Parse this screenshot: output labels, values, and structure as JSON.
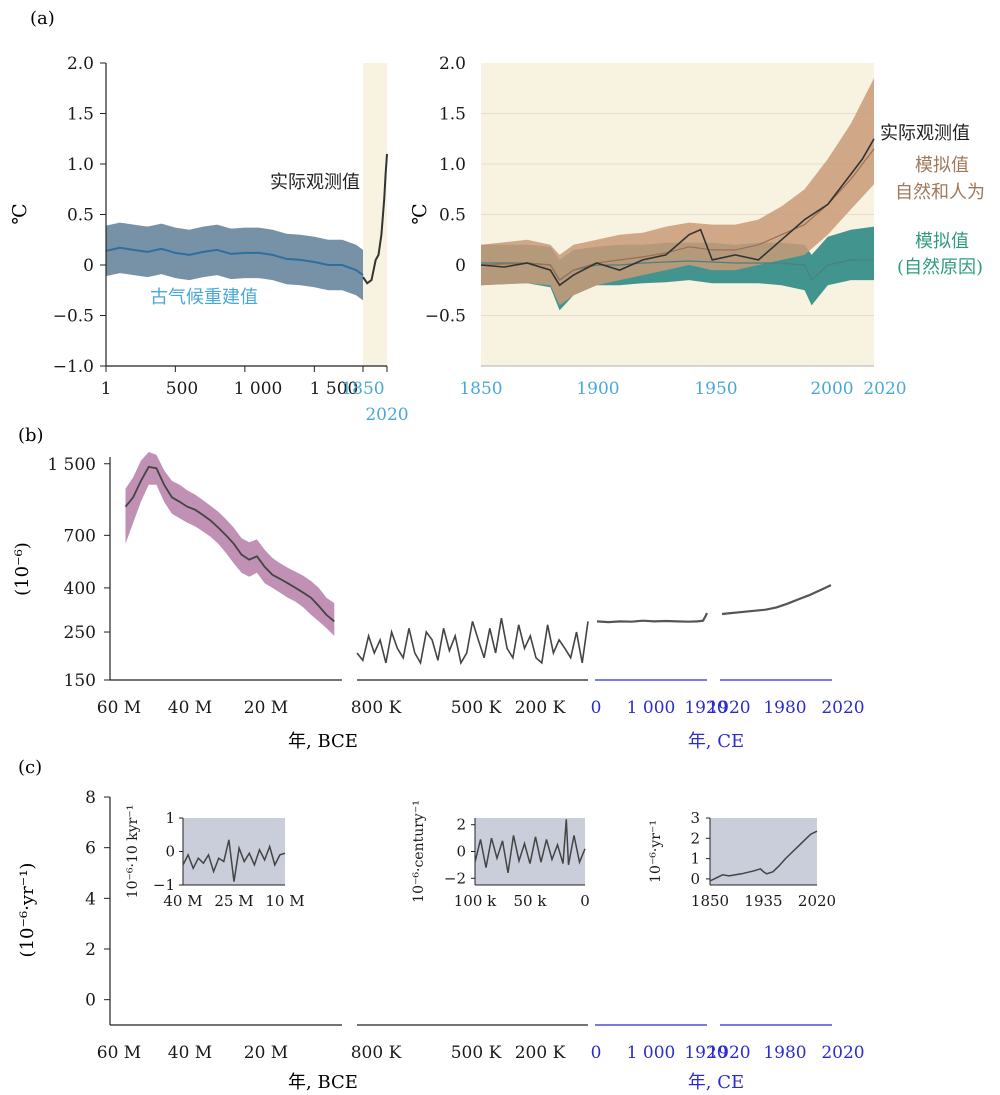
{
  "colors": {
    "observed": "#333333",
    "paleo": "#2f6fa0",
    "paleo_band": "#5f7f98",
    "paleo_label": "#4aa8d8",
    "sim_human": "#c99a78",
    "sim_human_label": "#a0785a",
    "sim_natural": "#2e8b86",
    "sim_natural_label": "#2e9b7e",
    "recent_bg": "#f8f3e0",
    "co2_band": "#b57ca8",
    "ce_axis": "#2b2bd0",
    "ce_tick": "#4aa8d8",
    "inset_bg": "#c9ceda"
  },
  "panel_labels": {
    "a": "(a)",
    "b": "(b)",
    "c": "(c)"
  },
  "chart_data": [
    {
      "id": "a-left",
      "type": "line",
      "ylabel": "℃",
      "ylim": [
        -1.0,
        2.0
      ],
      "yticks": [
        "2.0",
        "1.5",
        "1.0",
        "0.5",
        "0",
        "−0.5",
        "−1.0"
      ],
      "xticks": [
        "1",
        "500",
        "1 000",
        "1 500",
        "1850",
        "2020"
      ],
      "xlim": [
        1,
        2020
      ],
      "highlight_x": [
        1850,
        2020
      ],
      "series": [
        {
          "name": "古气候重建值",
          "x": [
            1,
            100,
            200,
            300,
            400,
            500,
            600,
            700,
            800,
            900,
            1000,
            1100,
            1200,
            1300,
            1400,
            1500,
            1600,
            1700,
            1800,
            1850
          ],
          "y": [
            0.14,
            0.17,
            0.15,
            0.13,
            0.16,
            0.12,
            0.1,
            0.13,
            0.15,
            0.11,
            0.12,
            0.12,
            0.1,
            0.06,
            0.05,
            0.03,
            0.0,
            0.0,
            -0.05,
            -0.1
          ],
          "band": 0.25
        },
        {
          "name": "实际观测值",
          "x": [
            1850,
            1880,
            1910,
            1940,
            1960,
            1980,
            2000,
            2010,
            2020
          ],
          "y": [
            -0.12,
            -0.18,
            -0.15,
            0.05,
            0.1,
            0.3,
            0.65,
            0.9,
            1.1
          ]
        }
      ]
    },
    {
      "id": "a-right",
      "type": "line",
      "ylabel": "℃",
      "ylim": [
        -1.0,
        2.0
      ],
      "yticks": [
        "2.0",
        "1.5",
        "1.0",
        "0.5",
        "0",
        "−0.5"
      ],
      "xticks": [
        "1850",
        "1900",
        "1950",
        "2000",
        "2020"
      ],
      "xlim": [
        1850,
        2020
      ],
      "series": [
        {
          "name": "实际观测值",
          "x": [
            1850,
            1860,
            1870,
            1880,
            1884,
            1890,
            1900,
            1910,
            1920,
            1930,
            1940,
            1945,
            1950,
            1960,
            1970,
            1980,
            1990,
            2000,
            2010,
            2015,
            2020
          ],
          "y": [
            0.0,
            -0.02,
            0.02,
            -0.05,
            -0.2,
            -0.1,
            0.02,
            -0.05,
            0.05,
            0.1,
            0.3,
            0.35,
            0.05,
            0.1,
            0.05,
            0.25,
            0.45,
            0.6,
            0.9,
            1.05,
            1.25
          ]
        },
        {
          "name": "模拟值 自然和人为",
          "x": [
            1850,
            1870,
            1880,
            1884,
            1890,
            1900,
            1910,
            1920,
            1930,
            1940,
            1950,
            1960,
            1970,
            1980,
            1990,
            2000,
            2010,
            2020
          ],
          "y": [
            0.0,
            0.02,
            0.0,
            -0.15,
            -0.05,
            0.02,
            0.05,
            0.08,
            0.12,
            0.18,
            0.15,
            0.15,
            0.2,
            0.3,
            0.4,
            0.6,
            0.85,
            1.15
          ],
          "band_lo": [
            -0.2,
            -0.18,
            -0.2,
            -0.4,
            -0.3,
            -0.2,
            -0.15,
            -0.1,
            -0.05,
            0.0,
            -0.05,
            -0.05,
            0.0,
            0.05,
            0.1,
            0.3,
            0.55,
            0.8
          ],
          "band_hi": [
            0.2,
            0.25,
            0.2,
            0.1,
            0.2,
            0.25,
            0.3,
            0.32,
            0.38,
            0.42,
            0.4,
            0.4,
            0.45,
            0.58,
            0.75,
            1.05,
            1.4,
            1.85
          ]
        },
        {
          "name": "模拟值 (自然原因)",
          "x": [
            1850,
            1870,
            1880,
            1884,
            1890,
            1900,
            1910,
            1920,
            1930,
            1940,
            1950,
            1960,
            1970,
            1980,
            1990,
            1993,
            2000,
            2010,
            2020
          ],
          "y": [
            0.02,
            0.02,
            0.0,
            -0.15,
            -0.05,
            0.0,
            0.0,
            0.02,
            0.03,
            0.04,
            0.03,
            0.02,
            0.02,
            0.02,
            0.0,
            -0.15,
            0.0,
            0.05,
            0.05
          ],
          "band_lo": [
            -0.2,
            -0.18,
            -0.22,
            -0.45,
            -0.3,
            -0.2,
            -0.2,
            -0.18,
            -0.17,
            -0.15,
            -0.18,
            -0.18,
            -0.18,
            -0.2,
            -0.25,
            -0.4,
            -0.2,
            -0.15,
            -0.15
          ],
          "band_hi": [
            0.2,
            0.2,
            0.18,
            0.05,
            0.15,
            0.18,
            0.2,
            0.2,
            0.22,
            0.22,
            0.22,
            0.2,
            0.22,
            0.22,
            0.2,
            0.1,
            0.28,
            0.35,
            0.38
          ]
        }
      ],
      "annotations": [
        "实际观测值",
        "模拟值",
        "自然和人为",
        "模拟值",
        "(自然原因)"
      ]
    },
    {
      "id": "b",
      "type": "line",
      "ylabel": "(10⁻⁶)",
      "yscale": "log",
      "ylim": [
        150,
        1700
      ],
      "yticks": [
        1500,
        700,
        400,
        250,
        150
      ],
      "ytick_labels": [
        "1 500",
        "700",
        "400",
        "250",
        "150"
      ],
      "xlabel_bce": "年, BCE",
      "xlabel_ce": "年, CE",
      "segments": [
        {
          "xticks": [
            "60 M",
            "40 M",
            "20 M"
          ],
          "xlim_Ma": [
            60,
            0
          ],
          "x_Ma": [
            56,
            54,
            52,
            50,
            48,
            46,
            44,
            42,
            40,
            38,
            36,
            34,
            32,
            30,
            28,
            26,
            24,
            22,
            20,
            18,
            16,
            14,
            12,
            10,
            8,
            6,
            4,
            2
          ],
          "y": [
            950,
            1050,
            1250,
            1450,
            1430,
            1200,
            1050,
            1000,
            950,
            920,
            870,
            820,
            760,
            700,
            640,
            570,
            540,
            560,
            500,
            460,
            440,
            420,
            400,
            380,
            360,
            330,
            300,
            280
          ],
          "band_lo": [
            640,
            800,
            1000,
            1200,
            1200,
            1000,
            880,
            840,
            800,
            770,
            730,
            690,
            640,
            580,
            520,
            470,
            450,
            470,
            420,
            400,
            380,
            360,
            345,
            325,
            300,
            280,
            260,
            240
          ],
          "band_hi": [
            1150,
            1300,
            1550,
            1700,
            1650,
            1400,
            1250,
            1200,
            1130,
            1080,
            1020,
            960,
            900,
            830,
            760,
            680,
            650,
            670,
            600,
            550,
            520,
            495,
            475,
            455,
            430,
            400,
            360,
            340
          ]
        },
        {
          "xticks": [
            "800 K",
            "500 K",
            "200 K"
          ],
          "xlim_ka": [
            800,
            0
          ],
          "x_ka": [
            800,
            780,
            760,
            740,
            720,
            700,
            680,
            660,
            640,
            620,
            600,
            580,
            560,
            540,
            520,
            500,
            480,
            460,
            440,
            420,
            400,
            380,
            360,
            340,
            320,
            300,
            280,
            260,
            240,
            220,
            200,
            180,
            160,
            140,
            120,
            100,
            80,
            60,
            40,
            20,
            0
          ],
          "y": [
            200,
            185,
            240,
            200,
            230,
            180,
            250,
            210,
            190,
            260,
            200,
            180,
            250,
            230,
            185,
            260,
            205,
            240,
            180,
            200,
            280,
            230,
            190,
            260,
            200,
            290,
            210,
            190,
            270,
            210,
            240,
            190,
            180,
            270,
            200,
            230,
            210,
            190,
            250,
            180,
            280
          ]
        },
        {
          "xticks": [
            "0",
            "1 000",
            "1920"
          ],
          "xlim_ce": [
            0,
            1920
          ],
          "x": [
            0,
            200,
            400,
            600,
            800,
            1000,
            1200,
            1400,
            1600,
            1750,
            1850,
            1900,
            1920
          ],
          "y": [
            280,
            278,
            280,
            279,
            282,
            280,
            281,
            280,
            279,
            280,
            282,
            298,
            306
          ]
        },
        {
          "xticks": [
            "1920",
            "1980",
            "2020"
          ],
          "xlim_ce": [
            1920,
            2020
          ],
          "x": [
            1920,
            1940,
            1960,
            1970,
            1980,
            1990,
            2000,
            2010,
            2020
          ],
          "y": [
            303,
            310,
            317,
            325,
            338,
            354,
            370,
            390,
            412
          ]
        }
      ]
    },
    {
      "id": "c",
      "type": "line",
      "ylabel": "(10⁻⁶·yr⁻¹)",
      "ylim": [
        -1,
        8
      ],
      "yticks": [
        8,
        6,
        4,
        2,
        0
      ],
      "ytick_labels": [
        "8",
        "6",
        "4",
        "2",
        "0"
      ],
      "xlabel_bce": "年, BCE",
      "xlabel_ce": "年, CE",
      "segments": [
        {
          "xticks": [
            "60 M",
            "40 M",
            "20 M"
          ]
        },
        {
          "xticks": [
            "800 K",
            "500 K",
            "200 K"
          ]
        },
        {
          "xticks": [
            "0",
            "1 000",
            "1920"
          ]
        },
        {
          "xticks": [
            "1920",
            "1980",
            "2020"
          ]
        }
      ],
      "insets": [
        {
          "ylabel": "10⁻⁶·10 kyr⁻¹",
          "yticks": [
            "1",
            "0",
            "−1"
          ],
          "ylim": [
            -1,
            1
          ],
          "xticks": [
            "40 M",
            "25 M",
            "10 M"
          ],
          "xlim_Ma": [
            40,
            10
          ],
          "x_Ma": [
            40,
            38.5,
            37,
            35.5,
            34,
            32.5,
            31,
            29.5,
            28,
            26.5,
            25,
            23.5,
            22,
            20.5,
            19,
            17.5,
            16,
            14.5,
            13,
            11.5,
            10
          ],
          "y": [
            -0.4,
            -0.1,
            -0.5,
            -0.2,
            -0.35,
            -0.1,
            -0.6,
            -0.2,
            -0.3,
            0.35,
            -0.9,
            0.1,
            -0.3,
            -0.05,
            -0.4,
            0.05,
            -0.25,
            0.15,
            -0.4,
            -0.1,
            -0.05
          ]
        },
        {
          "ylabel": "10⁻⁶·century⁻¹",
          "yticks": [
            "2",
            "0",
            "−2"
          ],
          "ylim": [
            -2.5,
            2.5
          ],
          "xticks": [
            "100 k",
            "50 k",
            "0"
          ],
          "xlim_ka": [
            100,
            0
          ],
          "x_ka": [
            100,
            95,
            90,
            85,
            80,
            75,
            70,
            65,
            60,
            55,
            50,
            45,
            40,
            35,
            30,
            25,
            20,
            17,
            15,
            10,
            5,
            0
          ],
          "y": [
            -0.8,
            0.9,
            -1.2,
            1.0,
            -0.5,
            0.8,
            -1.6,
            1.2,
            -0.7,
            0.6,
            -0.9,
            1.1,
            -0.8,
            0.9,
            -0.6,
            0.5,
            -0.9,
            2.4,
            -1.0,
            1.2,
            -0.8,
            0.2
          ]
        },
        {
          "ylabel": "10⁻⁶·yr⁻¹",
          "yticks": [
            "3",
            "2",
            "1",
            "0"
          ],
          "ylim": [
            -0.3,
            3
          ],
          "xticks": [
            "1850",
            "1935",
            "2020"
          ],
          "xlim": [
            1850,
            2020
          ],
          "x": [
            1850,
            1860,
            1870,
            1880,
            1900,
            1920,
            1930,
            1935,
            1940,
            1950,
            1960,
            1970,
            1980,
            1990,
            2000,
            2010,
            2020
          ],
          "y": [
            -0.1,
            0.05,
            0.2,
            0.15,
            0.25,
            0.4,
            0.5,
            0.35,
            0.25,
            0.35,
            0.65,
            1.0,
            1.3,
            1.6,
            1.9,
            2.2,
            2.35
          ]
        }
      ]
    }
  ]
}
